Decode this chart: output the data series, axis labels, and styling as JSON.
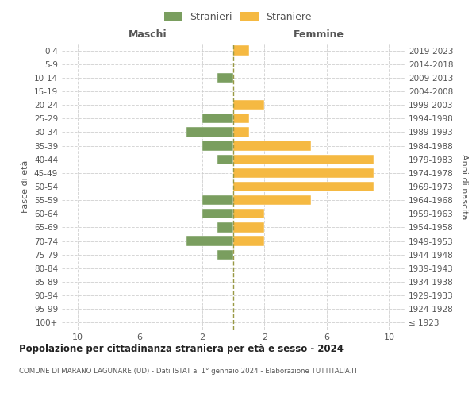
{
  "age_groups": [
    "100+",
    "95-99",
    "90-94",
    "85-89",
    "80-84",
    "75-79",
    "70-74",
    "65-69",
    "60-64",
    "55-59",
    "50-54",
    "45-49",
    "40-44",
    "35-39",
    "30-34",
    "25-29",
    "20-24",
    "15-19",
    "10-14",
    "5-9",
    "0-4"
  ],
  "birth_years": [
    "≤ 1923",
    "1924-1928",
    "1929-1933",
    "1934-1938",
    "1939-1943",
    "1944-1948",
    "1949-1953",
    "1954-1958",
    "1959-1963",
    "1964-1968",
    "1969-1973",
    "1974-1978",
    "1979-1983",
    "1984-1988",
    "1989-1993",
    "1994-1998",
    "1999-2003",
    "2004-2008",
    "2009-2013",
    "2014-2018",
    "2019-2023"
  ],
  "maschi": [
    0,
    0,
    0,
    0,
    0,
    1,
    3,
    1,
    2,
    2,
    0,
    0,
    1,
    2,
    3,
    2,
    0,
    0,
    1,
    0,
    0
  ],
  "femmine": [
    0,
    0,
    0,
    0,
    0,
    0,
    2,
    2,
    2,
    5,
    9,
    9,
    9,
    5,
    1,
    1,
    2,
    0,
    0,
    0,
    1
  ],
  "male_color": "#7a9e5f",
  "female_color": "#f5b942",
  "grid_color": "#cccccc",
  "center_line_color": "#999944",
  "text_color": "#555555",
  "title": "Popolazione per cittadinanza straniera per età e sesso - 2024",
  "subtitle": "COMUNE DI MARANO LAGUNARE (UD) - Dati ISTAT al 1° gennaio 2024 - Elaborazione TUTTITALIA.IT",
  "xlabel_left": "Maschi",
  "xlabel_right": "Femmine",
  "ylabel_left": "Fasce di età",
  "ylabel_right": "Anni di nascita",
  "legend_stranieri": "Stranieri",
  "legend_straniere": "Straniere",
  "xlim": 11,
  "xticks": [
    -10,
    -6,
    -2,
    2,
    6,
    10
  ],
  "xtick_labels": [
    "10",
    "6",
    "2",
    "2",
    "6",
    "10"
  ]
}
